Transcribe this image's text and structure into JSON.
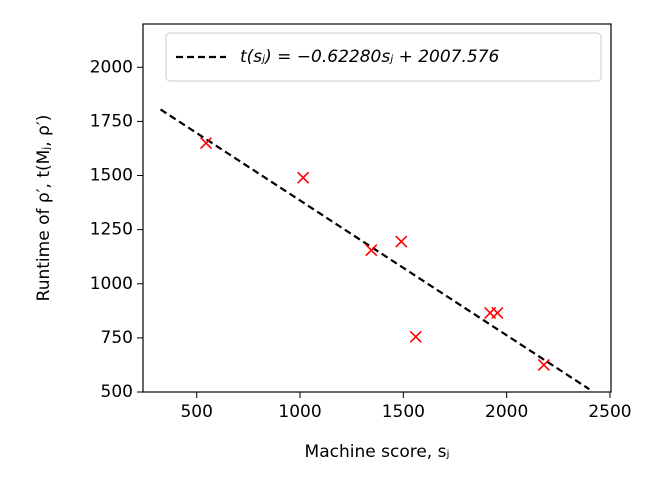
{
  "chart_data": {
    "type": "scatter",
    "x_label": "Machine score, sⱼ",
    "y_label": "Runtime of ρ′, t(Mⱼ, ρ′)",
    "x": [
      545,
      1015,
      1345,
      1490,
      1560,
      1920,
      1955,
      2180
    ],
    "values": [
      1650,
      1490,
      1155,
      1195,
      755,
      865,
      865,
      625
    ],
    "color": "#ff0000",
    "fit": {
      "name": "t(sⱼ) = −0.62280sⱼ + 2007.576",
      "color": "#000000",
      "x": [
        325,
        2400
      ],
      "values": [
        1805.17,
        512.86
      ]
    },
    "xlim": [
      240,
      2505
    ],
    "xticks": [
      500,
      1000,
      1500,
      2000,
      2500
    ],
    "ylim": [
      500,
      2200
    ],
    "yticks": [
      500,
      750,
      1000,
      1250,
      1500,
      1750,
      2000
    ],
    "legend": "upper right"
  }
}
